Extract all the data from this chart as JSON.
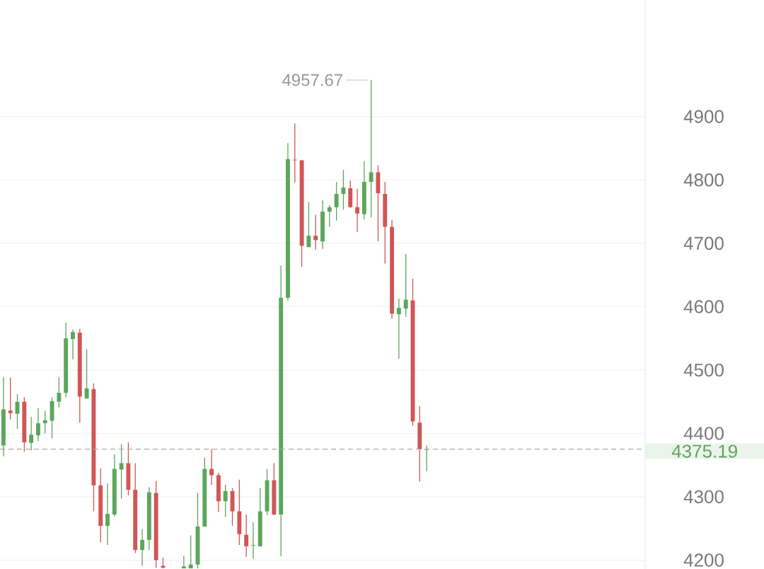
{
  "chart_data": {
    "type": "candlestick",
    "categories": [
      null,
      null,
      null,
      null,
      null,
      null,
      null,
      null,
      null,
      null,
      null,
      null,
      null,
      null,
      null,
      null,
      null,
      null,
      null,
      null,
      null,
      null,
      null,
      null,
      null,
      null,
      null,
      null,
      null,
      null,
      null,
      null,
      null,
      null,
      null,
      null,
      null,
      null,
      null,
      null,
      null,
      null,
      null,
      null,
      null,
      null,
      null,
      null,
      null,
      null,
      null,
      null,
      null,
      null,
      null,
      null,
      null,
      null,
      null,
      null,
      null,
      null,
      null,
      null,
      null,
      null,
      null,
      null,
      null,
      null,
      null,
      null,
      null,
      null,
      null,
      null,
      null,
      null,
      null,
      null,
      null,
      null,
      null,
      null,
      null,
      null,
      null,
      null,
      null,
      null,
      null,
      null,
      null
    ],
    "ohlc": [
      [
        4381,
        4489,
        4364,
        4438
      ],
      [
        4436,
        4488,
        4422,
        4432
      ],
      [
        4431,
        4462,
        4407,
        4450
      ],
      [
        4450,
        4457,
        4371,
        4386
      ],
      [
        4385,
        4426,
        4373,
        4398
      ],
      [
        4397,
        4440,
        4388,
        4416
      ],
      [
        4416,
        4436,
        4400,
        4421
      ],
      [
        4420,
        4457,
        4392,
        4451
      ],
      [
        4450,
        4489,
        4441,
        4464
      ],
      [
        4464,
        4575,
        4457,
        4550
      ],
      [
        4549,
        4564,
        4517,
        4560
      ],
      [
        4559,
        4565,
        4417,
        4458
      ],
      [
        4455,
        4533,
        4455,
        4471
      ],
      [
        4470,
        4479,
        4277,
        4318
      ],
      [
        4318,
        4345,
        4228,
        4254
      ],
      [
        4254,
        4321,
        4224,
        4273
      ],
      [
        4272,
        4367,
        4269,
        4344
      ],
      [
        4343,
        4383,
        4297,
        4353
      ],
      [
        4353,
        4386,
        4302,
        4311
      ],
      [
        4311,
        4353,
        4211,
        4216
      ],
      [
        4216,
        4249,
        4191,
        4232
      ],
      [
        4232,
        4315,
        4216,
        4307
      ],
      [
        4306,
        4325,
        4188,
        4200
      ],
      [
        4191,
        4204,
        4187,
        4188
      ],
      null,
      null,
      [
        4187,
        4207,
        4187,
        4190
      ],
      [
        4187,
        4239,
        4187,
        4193
      ],
      [
        4193,
        4306,
        4187,
        4253
      ],
      [
        4253,
        4362,
        4253,
        4344
      ],
      [
        4344,
        4375,
        4319,
        4334
      ],
      [
        4334,
        4338,
        4276,
        4293
      ],
      [
        4293,
        4319,
        4268,
        4309
      ],
      [
        4309,
        4314,
        4254,
        4277
      ],
      [
        4277,
        4327,
        4224,
        4241
      ],
      [
        4240,
        4272,
        4205,
        4222
      ],
      [
        4223,
        4260,
        4202,
        4224
      ],
      [
        4222,
        4314,
        4221,
        4277
      ],
      [
        4277,
        4344,
        4271,
        4326
      ],
      [
        4326,
        4353,
        4271,
        4272
      ],
      [
        4272,
        4665,
        4206,
        4614
      ],
      [
        4614,
        4858,
        4610,
        4833
      ],
      [
        4832,
        4889,
        4796,
        4831
      ],
      [
        4831,
        4831,
        4663,
        4696
      ],
      [
        4694,
        4765,
        4694,
        4712
      ],
      [
        4712,
        4745,
        4690,
        4705
      ],
      [
        4703,
        4768,
        4691,
        4750
      ],
      [
        4750,
        4760,
        4726,
        4757
      ],
      [
        4757,
        4797,
        4736,
        4778
      ],
      [
        4778,
        4816,
        4753,
        4788
      ],
      [
        4787,
        4799,
        4756,
        4757
      ],
      [
        4757,
        4786,
        4718,
        4747
      ],
      [
        4746,
        4830,
        4738,
        4797
      ],
      [
        4797,
        4957.67,
        4741,
        4812
      ],
      [
        4812,
        4823,
        4703,
        4779
      ],
      [
        4778,
        4797,
        4668,
        4726
      ],
      [
        4726,
        4737,
        4581,
        4589
      ],
      [
        4588,
        4613,
        4518,
        4598
      ],
      [
        4597,
        4683,
        4584,
        4611
      ],
      [
        4610,
        4644,
        4412,
        4419
      ],
      [
        4417,
        4443,
        4324,
        4375
      ],
      [
        4374,
        4381,
        4340,
        4375.19
      ],
      null,
      null,
      null,
      null,
      null,
      null,
      null,
      null,
      null,
      null,
      null,
      null,
      null,
      null,
      null,
      null,
      null,
      null,
      null,
      null,
      null,
      null,
      null,
      null,
      null,
      null,
      null,
      null,
      null,
      null,
      null
    ],
    "colors": [
      "#5ba65b",
      "#d05656",
      "#5ba65b",
      "#d05656",
      "#5ba65b",
      "#5ba65b",
      "#5ba65b",
      "#5ba65b",
      "#5ba65b",
      "#5ba65b",
      "#5ba65b",
      "#d05656",
      "#5ba65b",
      "#d05656",
      "#d05656",
      "#5ba65b",
      "#5ba65b",
      "#5ba65b",
      "#d05656",
      "#d05656",
      "#5ba65b",
      "#5ba65b",
      "#d05656",
      "#d05656",
      null,
      null,
      "#5ba65b",
      "#5ba65b",
      "#5ba65b",
      "#5ba65b",
      "#d05656",
      "#d05656",
      "#5ba65b",
      "#d05656",
      "#d05656",
      "#d05656",
      "#5ba65b",
      "#5ba65b",
      "#5ba65b",
      "#d05656",
      "#5ba65b",
      "#5ba65b",
      "#d05656",
      "#d05656",
      "#5ba65b",
      "#d05656",
      "#5ba65b",
      "#5ba65b",
      "#5ba65b",
      "#5ba65b",
      "#d05656",
      "#d05656",
      "#5ba65b",
      "#5ba65b",
      "#d05656",
      "#d05656",
      "#d05656",
      "#5ba65b",
      "#5ba65b",
      "#d05656",
      "#d05656",
      "#5ba65b",
      null,
      null,
      null,
      null,
      null,
      null,
      null,
      null,
      null,
      null,
      null,
      null,
      null,
      null,
      null,
      null,
      null,
      null,
      null,
      null,
      null,
      null,
      null,
      null,
      null,
      null,
      null,
      null,
      null,
      null,
      null
    ],
    "ylim": [
      4186,
      5084
    ],
    "yticks": [
      4200,
      4300,
      4400,
      4500,
      4600,
      4700,
      4800,
      4900
    ],
    "tick_labels": "y",
    "grid": "y",
    "ref_lines": [
      {
        "axis": "y",
        "value": 4375.19,
        "label": "4375.19",
        "color": "#aaaaaa",
        "line_style": "dashed"
      }
    ],
    "annotations": [
      "4957.67"
    ]
  }
}
